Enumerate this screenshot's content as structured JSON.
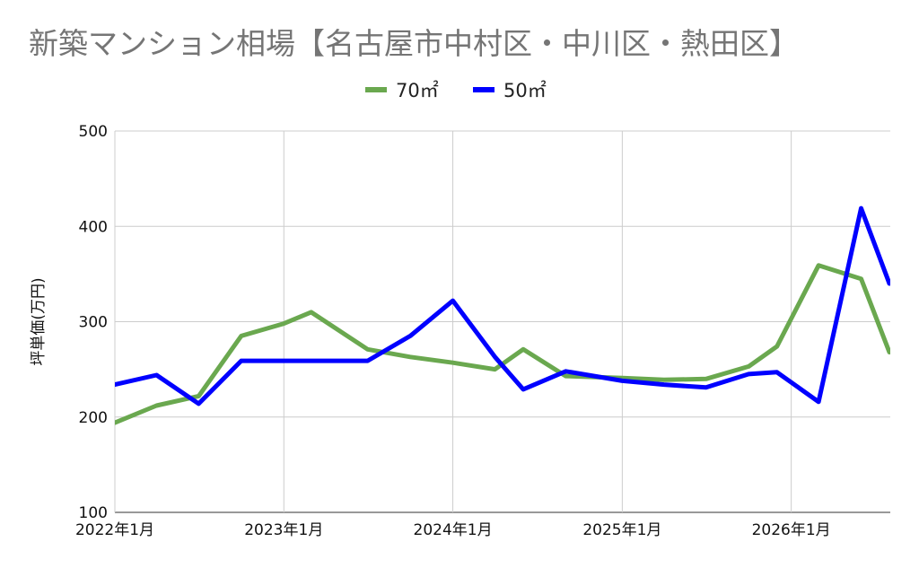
{
  "chart_data": {
    "type": "line",
    "title": "新築マンション相場【名古屋市中村区・中川区・熱田区】",
    "xlabel": "",
    "ylabel": "坪単価(万円)",
    "ylim": [
      100,
      500
    ],
    "yticks": [
      "500",
      "400",
      "300",
      "200",
      "100"
    ],
    "xticks": [
      "2022年1月",
      "2023年1月",
      "2024年1月",
      "2025年1月",
      "2026年1月"
    ],
    "x": [
      "2022-01-01",
      "2022-04-01",
      "2022-07-01",
      "2022-10-01",
      "2023-01-01",
      "2023-03-01",
      "2023-07-01",
      "2023-10-01",
      "2024-01-01",
      "2024-04-01",
      "2024-06-01",
      "2024-09-01",
      "2025-01-01",
      "2025-04-01",
      "2025-07-01",
      "2025-10-01",
      "2025-12-01",
      "2026-03-01",
      "2026-06-01",
      "2026-08-01"
    ],
    "series": [
      {
        "name": "70㎡",
        "color": "#6aa84f",
        "values": [
          194,
          212,
          222,
          285,
          298,
          310,
          271,
          263,
          257,
          250,
          271,
          243,
          241,
          239,
          240,
          253,
          274,
          359,
          345,
          268
        ]
      },
      {
        "name": "50㎡",
        "color": "#0000ff",
        "values": [
          234,
          244,
          214,
          259,
          259,
          259,
          259,
          285,
          322,
          263,
          229,
          248,
          238,
          234,
          231,
          245,
          247,
          216,
          419,
          340
        ]
      }
    ],
    "grid": true,
    "legend_position": "top-center"
  }
}
